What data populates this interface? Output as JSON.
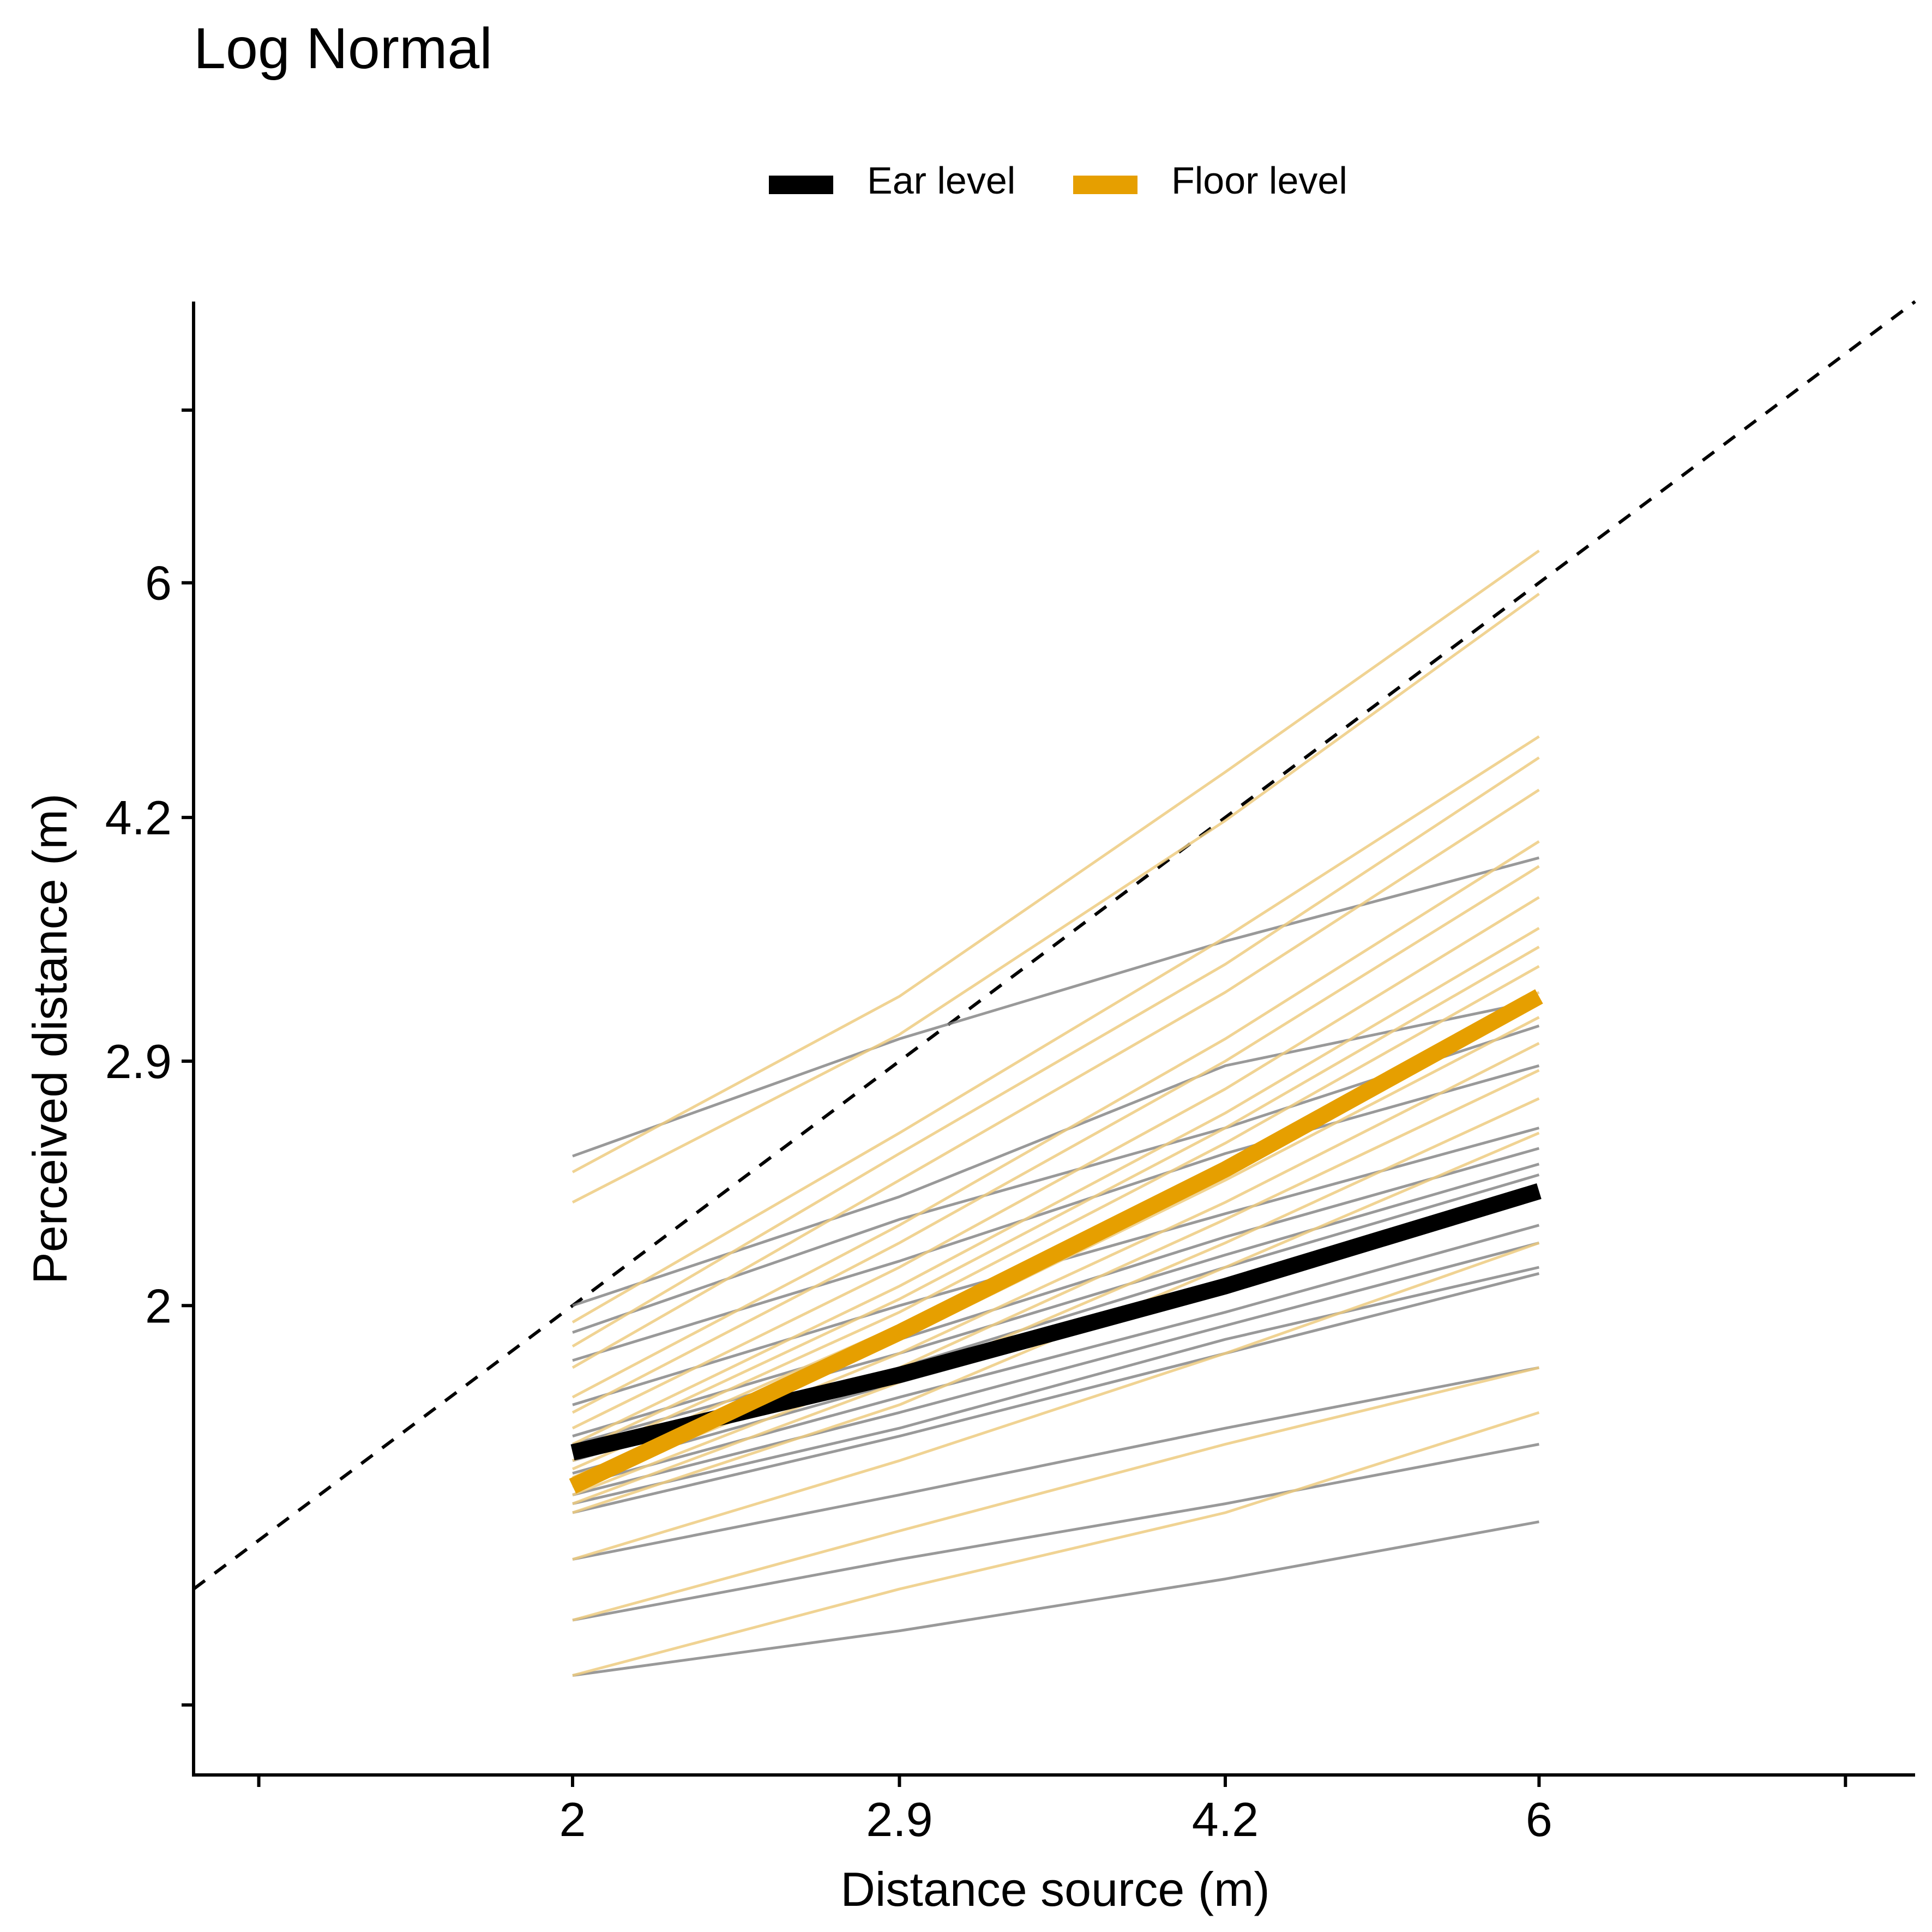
{
  "chart_data": {
    "type": "line",
    "title": "Log Normal",
    "xlabel": "Distance source (m)",
    "ylabel": "Perceived distance (m)",
    "x_scale": "log",
    "y_scale": "log",
    "xlim": [
      1.3,
      9.2
    ],
    "ylim": [
      0.98,
      9.2
    ],
    "x_ticks": [
      2,
      2.9,
      4.2,
      6
    ],
    "x_tick_labels": [
      "2",
      "2.9",
      "4.2",
      "6"
    ],
    "y_ticks": [
      2,
      2.9,
      4.2,
      6
    ],
    "y_tick_labels": [
      "2",
      "2.9",
      "4.2",
      "6"
    ],
    "x_minor_ticks": [
      1.4,
      8.5
    ],
    "y_minor_ticks": [
      1.09,
      7.8
    ],
    "grid": false,
    "legend_position": "top",
    "legend": [
      {
        "label": "Ear level",
        "color": "#000000"
      },
      {
        "label": "Floor level",
        "color": "#E69F00"
      }
    ],
    "reference_line": {
      "label": "",
      "style": "dashed",
      "slope": 1
    },
    "x": [
      2,
      2.9,
      4.2,
      6
    ],
    "series": [
      {
        "group": "Ear level",
        "role": "mean",
        "color": "#000000",
        "values": [
          1.6,
          1.8,
          2.06,
          2.38
        ]
      },
      {
        "group": "Floor level",
        "role": "mean",
        "color": "#E69F00",
        "values": [
          1.52,
          1.92,
          2.46,
          3.2
        ]
      },
      {
        "group": "Ear level",
        "role": "individual",
        "values": [
          2.51,
          3.0,
          3.48,
          3.95
        ]
      },
      {
        "group": "Ear level",
        "role": "individual",
        "values": [
          2.0,
          2.36,
          2.88,
          3.18
        ]
      },
      {
        "group": "Ear level",
        "role": "individual",
        "values": [
          1.92,
          2.28,
          2.62,
          3.06
        ]
      },
      {
        "group": "Ear level",
        "role": "individual",
        "values": [
          1.84,
          2.14,
          2.52,
          2.88
        ]
      },
      {
        "group": "Ear level",
        "role": "individual",
        "values": [
          1.72,
          2.0,
          2.3,
          2.62
        ]
      },
      {
        "group": "Ear level",
        "role": "individual",
        "values": [
          1.64,
          1.9,
          2.22,
          2.54
        ]
      },
      {
        "group": "Ear level",
        "role": "individual",
        "values": [
          1.62,
          1.86,
          2.16,
          2.48
        ]
      },
      {
        "group": "Ear level",
        "role": "individual",
        "values": [
          1.58,
          1.82,
          2.12,
          2.44
        ]
      },
      {
        "group": "Ear level",
        "role": "individual",
        "values": [
          1.55,
          1.78,
          2.04,
          2.36
        ]
      },
      {
        "group": "Ear level",
        "role": "individual",
        "values": [
          1.52,
          1.74,
          1.98,
          2.26
        ]
      },
      {
        "group": "Ear level",
        "role": "individual",
        "values": [
          1.5,
          1.7,
          1.94,
          2.2
        ]
      },
      {
        "group": "Ear level",
        "role": "individual",
        "values": [
          1.48,
          1.66,
          1.9,
          2.12
        ]
      },
      {
        "group": "Ear level",
        "role": "individual",
        "values": [
          1.46,
          1.64,
          1.86,
          2.1
        ]
      },
      {
        "group": "Ear level",
        "role": "individual",
        "values": [
          1.36,
          1.5,
          1.66,
          1.82
        ]
      },
      {
        "group": "Ear level",
        "role": "individual",
        "values": [
          1.24,
          1.36,
          1.48,
          1.62
        ]
      },
      {
        "group": "Ear level",
        "role": "individual",
        "values": [
          1.14,
          1.22,
          1.32,
          1.44
        ]
      },
      {
        "group": "Floor level",
        "role": "individual",
        "values": [
          2.45,
          3.2,
          4.5,
          6.3
        ]
      },
      {
        "group": "Floor level",
        "role": "individual",
        "values": [
          2.34,
          3.02,
          4.18,
          5.9
        ]
      },
      {
        "group": "Floor level",
        "role": "individual",
        "values": [
          1.95,
          2.6,
          3.5,
          4.75
        ]
      },
      {
        "group": "Floor level",
        "role": "individual",
        "values": [
          1.88,
          2.52,
          3.36,
          4.6
        ]
      },
      {
        "group": "Floor level",
        "role": "individual",
        "values": [
          1.82,
          2.42,
          3.22,
          4.38
        ]
      },
      {
        "group": "Floor level",
        "role": "individual",
        "values": [
          1.74,
          2.26,
          3.0,
          4.05
        ]
      },
      {
        "group": "Floor level",
        "role": "individual",
        "values": [
          1.7,
          2.2,
          2.9,
          3.9
        ]
      },
      {
        "group": "Floor level",
        "role": "individual",
        "values": [
          1.66,
          2.12,
          2.78,
          3.72
        ]
      },
      {
        "group": "Floor level",
        "role": "individual",
        "values": [
          1.62,
          2.06,
          2.68,
          3.55
        ]
      },
      {
        "group": "Floor level",
        "role": "individual",
        "values": [
          1.6,
          2.02,
          2.62,
          3.45
        ]
      },
      {
        "group": "Floor level",
        "role": "individual",
        "values": [
          1.58,
          1.98,
          2.56,
          3.35
        ]
      },
      {
        "group": "Floor level",
        "role": "individual",
        "values": [
          1.56,
          1.94,
          2.48,
          3.22
        ]
      },
      {
        "group": "Floor level",
        "role": "individual",
        "values": [
          1.54,
          1.9,
          2.42,
          3.1
        ]
      },
      {
        "group": "Floor level",
        "role": "individual",
        "values": [
          1.52,
          1.86,
          2.34,
          2.98
        ]
      },
      {
        "group": "Floor level",
        "role": "individual",
        "values": [
          1.5,
          1.82,
          2.28,
          2.86
        ]
      },
      {
        "group": "Floor level",
        "role": "individual",
        "values": [
          1.48,
          1.78,
          2.2,
          2.74
        ]
      },
      {
        "group": "Floor level",
        "role": "individual",
        "values": [
          1.46,
          1.72,
          2.12,
          2.6
        ]
      },
      {
        "group": "Floor level",
        "role": "individual",
        "values": [
          1.36,
          1.58,
          1.86,
          2.2
        ]
      },
      {
        "group": "Floor level",
        "role": "individual",
        "values": [
          1.14,
          1.3,
          1.46,
          1.7
        ]
      },
      {
        "group": "Floor level",
        "role": "individual",
        "values": [
          1.24,
          1.42,
          1.62,
          1.82
        ]
      }
    ]
  },
  "colors": {
    "ear_level": "#000000",
    "floor_level": "#E69F00",
    "ear_individual": "#7f7f7f",
    "floor_individual": "#EDCB80",
    "axis": "#000000"
  }
}
